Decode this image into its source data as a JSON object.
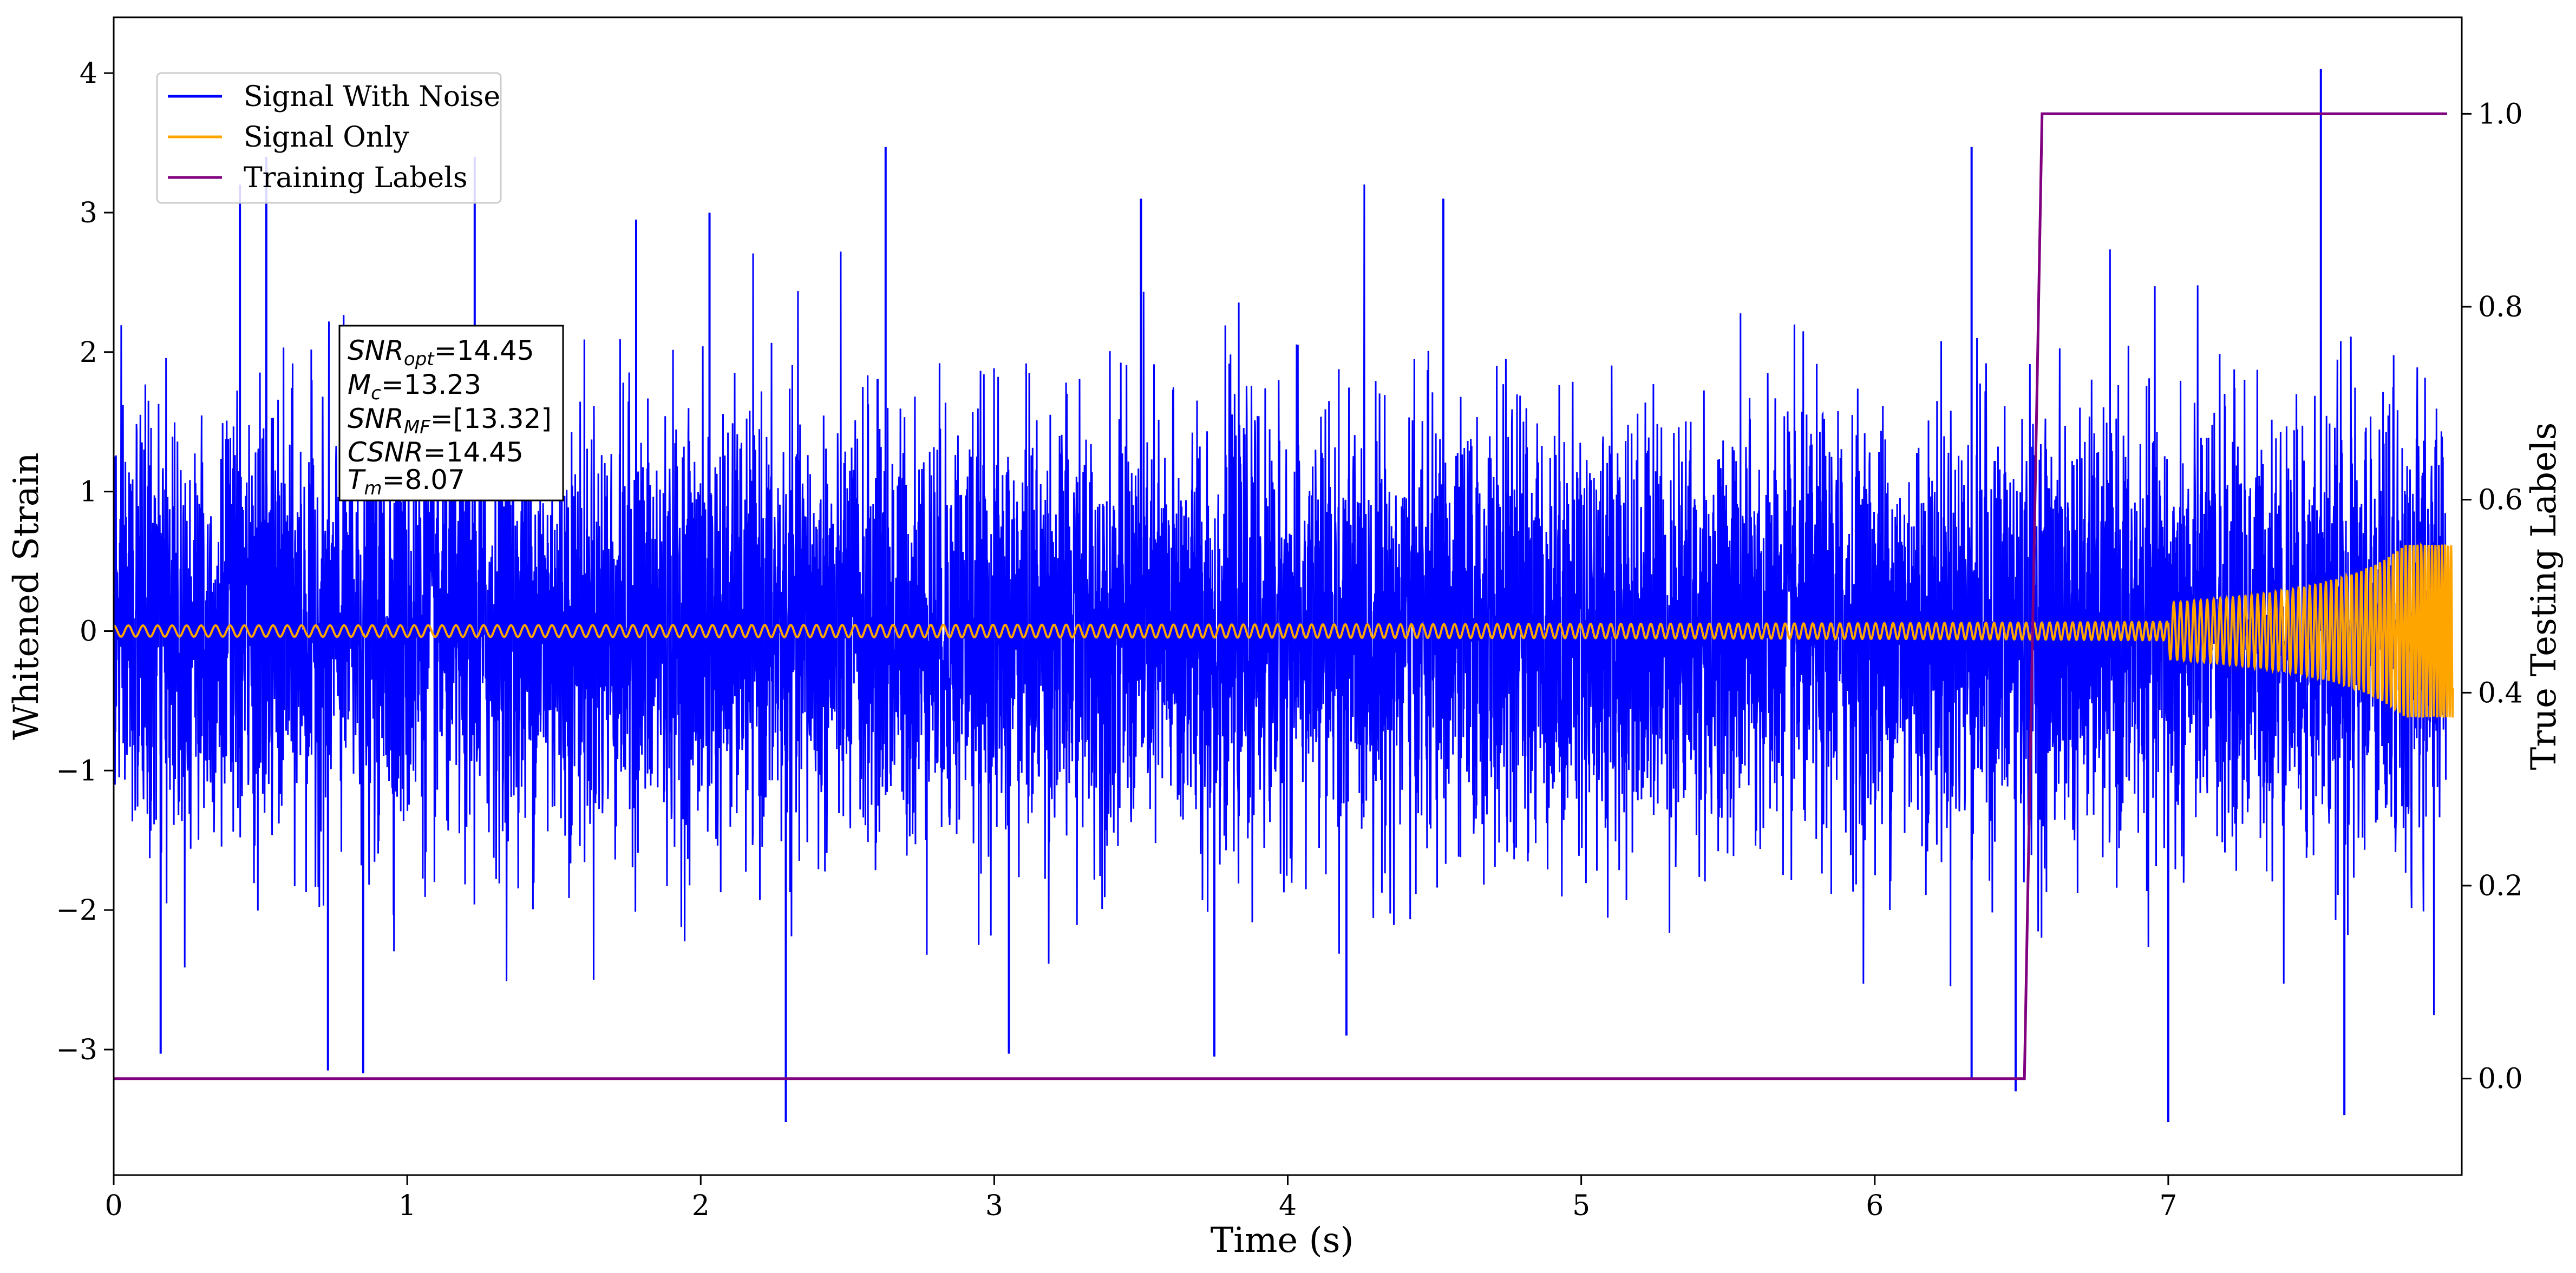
{
  "chart_data": {
    "type": "line",
    "xlabel": "Time (s)",
    "ylabel": "Whitened Strain",
    "y2label": "True Testing Labels",
    "xlim": [
      0,
      8.0
    ],
    "ylim": [
      -3.9,
      4.4
    ],
    "y2lim": [
      -0.1,
      1.1
    ],
    "xticks": [
      0,
      1,
      2,
      3,
      4,
      5,
      6,
      7
    ],
    "yticks": [
      -3,
      -2,
      -1,
      0,
      1,
      2,
      3,
      4
    ],
    "y2ticks": [
      0.0,
      0.2,
      0.4,
      0.6,
      0.8,
      1.0
    ],
    "xtick_labels": [
      "0",
      "1",
      "2",
      "3",
      "4",
      "5",
      "6",
      "7"
    ],
    "ytick_labels": [
      "−3",
      "−2",
      "−1",
      "0",
      "1",
      "2",
      "3",
      "4"
    ],
    "y2tick_labels": [
      "0.0",
      "0.2",
      "0.4",
      "0.6",
      "0.8",
      "1.0"
    ],
    "legend_position": "top-left",
    "grid": false,
    "series": [
      {
        "name": "Signal With Noise",
        "color": "#0000ff",
        "axis": "left",
        "description_values": {
          "noise_std": 0.75,
          "peak_max": 4.03,
          "peak_min": -3.52
        },
        "spikes": [
          {
            "x": 0.43,
            "y": 3.2
          },
          {
            "x": 0.52,
            "y": 3.4
          },
          {
            "x": 1.23,
            "y": 3.4
          },
          {
            "x": 1.78,
            "y": 2.95
          },
          {
            "x": 2.03,
            "y": 3.0
          },
          {
            "x": 2.63,
            "y": 3.47
          },
          {
            "x": 3.5,
            "y": 3.1
          },
          {
            "x": 4.53,
            "y": 3.1
          },
          {
            "x": 6.33,
            "y": 3.47
          },
          {
            "x": 7.52,
            "y": 4.03
          },
          {
            "x": 2.29,
            "y": -3.52
          },
          {
            "x": 6.33,
            "y": -3.2
          },
          {
            "x": 6.48,
            "y": -3.3
          },
          {
            "x": 7.0,
            "y": -3.52
          },
          {
            "x": 7.6,
            "y": -3.47
          },
          {
            "x": 0.16,
            "y": -3.03
          },
          {
            "x": 0.73,
            "y": -3.15
          },
          {
            "x": 0.85,
            "y": -3.17
          },
          {
            "x": 3.05,
            "y": -3.03
          },
          {
            "x": 3.75,
            "y": -3.05
          },
          {
            "x": 4.2,
            "y": -2.9
          }
        ]
      },
      {
        "name": "Signal Only",
        "color": "#ffa500",
        "axis": "left",
        "chirp": {
          "t_merge": 8.07,
          "f0": 20,
          "amp0": 0.04,
          "amp_end": 0.62
        }
      },
      {
        "name": "Training Labels",
        "color": "#800080",
        "axis": "right",
        "x": [
          0.0,
          6.51,
          6.57,
          7.95
        ],
        "y": [
          0.0,
          0.0,
          1.0,
          1.0
        ]
      }
    ],
    "annotation": {
      "lines": [
        {
          "main": "SNR",
          "sub": "opt",
          "value": "=14.45"
        },
        {
          "main": "M",
          "sub": "c",
          "value": "=13.23"
        },
        {
          "main": "SNR",
          "sub": "MF",
          "value": "=[13.32]"
        },
        {
          "main": "CSNR",
          "sub": "",
          "value": "=14.45"
        },
        {
          "main": "T",
          "sub": "m",
          "value": "=8.07"
        }
      ]
    }
  }
}
